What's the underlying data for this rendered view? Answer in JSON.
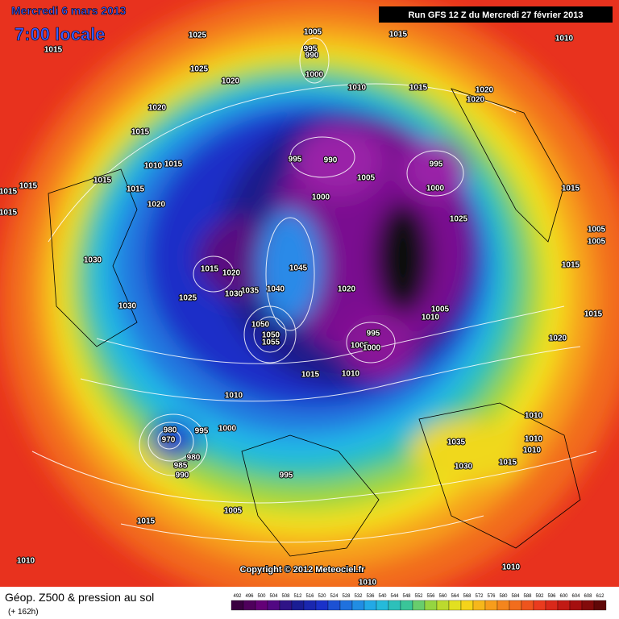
{
  "header": {
    "date": "Mercredi 6 mars 2013",
    "time": "7:00 locale",
    "run": "Run GFS 12 Z du Mercredi 27 février 2013"
  },
  "map": {
    "copyright": "Copyright © 2012 Meteociel.fr",
    "isobar_labels": [
      "1015",
      "1025",
      "1005",
      "995",
      "990",
      "1015",
      "1010",
      "1025",
      "1020",
      "1000",
      "1010",
      "1015",
      "1020",
      "1020",
      "1020",
      "1015",
      "1010",
      "1015",
      "995",
      "990",
      "995",
      "1005",
      "1000",
      "1015",
      "1015",
      "1015",
      "1015",
      "1015",
      "1015",
      "1000",
      "1020",
      "1025",
      "1005",
      "1005",
      "1030",
      "1015",
      "1015",
      "1020",
      "1045",
      "1040",
      "1035",
      "1030",
      "1020",
      "1025",
      "1030",
      "1005",
      "1010",
      "1015",
      "1050",
      "1050",
      "1055",
      "995",
      "1005",
      "1000",
      "1020",
      "1015",
      "1010",
      "1010",
      "1010",
      "995",
      "1000",
      "980",
      "970",
      "980",
      "985",
      "990",
      "1035",
      "1010",
      "1010",
      "1015",
      "1030",
      "995",
      "1005",
      "1015",
      "1010",
      "1010",
      "1010"
    ]
  },
  "legend": {
    "title": "Géop. Z500 & pression au sol",
    "lead": "(+ 162h)",
    "scale": [
      492,
      496,
      500,
      504,
      508,
      512,
      516,
      520,
      524,
      528,
      532,
      536,
      540,
      544,
      548,
      552,
      556,
      560,
      564,
      568,
      572,
      576,
      580,
      584,
      588,
      592,
      596,
      600,
      604,
      608,
      612
    ]
  }
}
